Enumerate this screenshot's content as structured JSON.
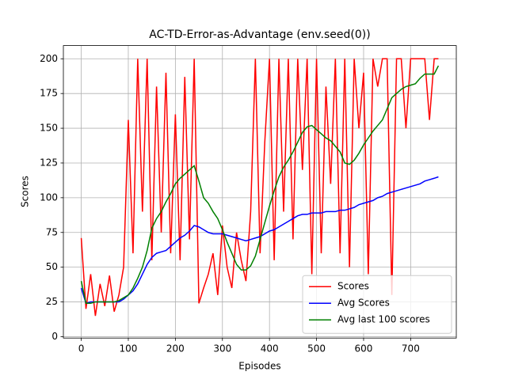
{
  "chart_data": {
    "type": "line",
    "title": "AC-TD-Error-as-Advantage (env.seed(0))",
    "xlabel": "Episodes",
    "ylabel": "Scores",
    "x": [
      0,
      10,
      20,
      30,
      40,
      50,
      60,
      70,
      80,
      90,
      100,
      110,
      120,
      130,
      140,
      150,
      160,
      170,
      180,
      190,
      200,
      210,
      220,
      230,
      240,
      250,
      260,
      270,
      280,
      290,
      300,
      310,
      320,
      330,
      340,
      350,
      360,
      370,
      380,
      390,
      400,
      410,
      420,
      430,
      440,
      450,
      460,
      470,
      480,
      490,
      500,
      510,
      520,
      530,
      540,
      550,
      560,
      570,
      580,
      590,
      600,
      610,
      620,
      630,
      640,
      650,
      660,
      670,
      680,
      690,
      700,
      710,
      720,
      730,
      740,
      750,
      759
    ],
    "series": [
      {
        "name": "Scores",
        "color": "#ff0000",
        "values": [
          71,
          20,
          45,
          15,
          38,
          22,
          44,
          18,
          30,
          50,
          156,
          60,
          200,
          90,
          200,
          55,
          180,
          75,
          190,
          60,
          160,
          55,
          187,
          70,
          200,
          24,
          35,
          45,
          60,
          30,
          80,
          50,
          35,
          75,
          55,
          40,
          90,
          200,
          60,
          140,
          200,
          55,
          200,
          90,
          200,
          70,
          200,
          120,
          200,
          45,
          200,
          60,
          180,
          110,
          200,
          60,
          200,
          50,
          200,
          150,
          190,
          45,
          200,
          180,
          200,
          200,
          30,
          200,
          200,
          150,
          200,
          200,
          200,
          200,
          156,
          200,
          200
        ]
      },
      {
        "name": "Avg Scores",
        "color": "#0000ff",
        "values": [
          35,
          24,
          25,
          25,
          25,
          25,
          25,
          25,
          25,
          27,
          30,
          33,
          38,
          45,
          52,
          57,
          60,
          61,
          62,
          65,
          68,
          71,
          73,
          76,
          80,
          79,
          77,
          75,
          74,
          74,
          74,
          73,
          72,
          71,
          70,
          69,
          70,
          71,
          72,
          74,
          76,
          77,
          79,
          81,
          83,
          85,
          87,
          88,
          88,
          89,
          89,
          89,
          90,
          90,
          90,
          91,
          91,
          92,
          93,
          95,
          96,
          97,
          98,
          100,
          101,
          103,
          104,
          105,
          106,
          107,
          108,
          109,
          110,
          112,
          113,
          114,
          115
        ]
      },
      {
        "name": "Avg last 100 scores",
        "color": "#008000",
        "values": [
          40,
          24,
          24,
          25,
          25,
          25,
          25,
          25,
          26,
          28,
          30,
          35,
          42,
          50,
          62,
          78,
          85,
          90,
          97,
          103,
          110,
          114,
          117,
          120,
          123,
          112,
          100,
          96,
          90,
          85,
          77,
          68,
          60,
          52,
          48,
          48,
          51,
          58,
          70,
          82,
          94,
          105,
          115,
          122,
          127,
          133,
          140,
          147,
          151,
          152,
          149,
          146,
          143,
          141,
          137,
          133,
          125,
          124,
          127,
          132,
          138,
          143,
          148,
          152,
          156,
          164,
          172,
          175,
          178,
          180,
          181,
          182,
          186,
          189,
          189,
          189,
          195
        ]
      }
    ],
    "xlim": [
      -38,
      797
    ],
    "ylim": [
      -1,
      209.5
    ],
    "xticks": [
      0,
      100,
      200,
      300,
      400,
      500,
      600,
      700
    ],
    "yticks": [
      0,
      25,
      50,
      75,
      100,
      125,
      150,
      175,
      200
    ],
    "grid": true,
    "legend": "lower right"
  }
}
